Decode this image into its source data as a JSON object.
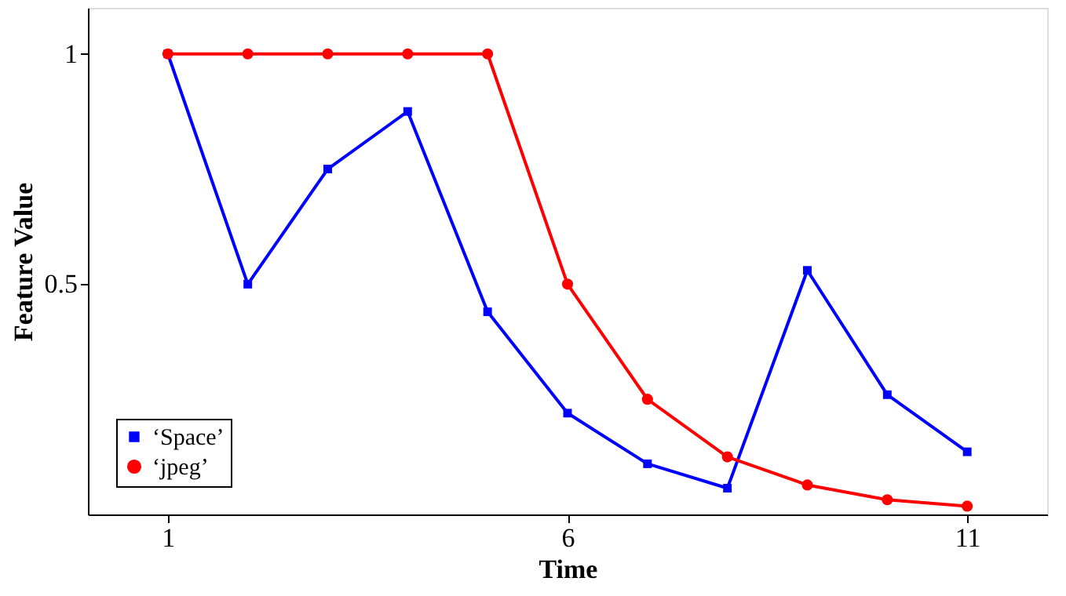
{
  "chart_data": {
    "type": "line",
    "xlabel": "Time",
    "ylabel": "Feature Value",
    "x": [
      1,
      2,
      3,
      4,
      5,
      6,
      7,
      8,
      9,
      10,
      11
    ],
    "xlim": [
      0,
      12
    ],
    "xticks": [
      1,
      6,
      11
    ],
    "ylim": [
      0,
      1.1
    ],
    "yticks": [
      0.5,
      1
    ],
    "grid": false,
    "legend": "bottom left",
    "line_style": "solid",
    "series": [
      {
        "name": "‘Space’",
        "color": "#0000ff",
        "marker": "square",
        "values": [
          1.0,
          0.5,
          0.75,
          0.875,
          0.44,
          0.22,
          0.11,
          0.057,
          0.53,
          0.26,
          0.136
        ]
      },
      {
        "name": "‘jpeg’",
        "color": "#ff0000",
        "marker": "circle",
        "values": [
          1.0,
          1.0,
          1.0,
          1.0,
          1.0,
          0.5,
          0.25,
          0.125,
          0.064,
          0.032,
          0.018
        ]
      }
    ]
  }
}
